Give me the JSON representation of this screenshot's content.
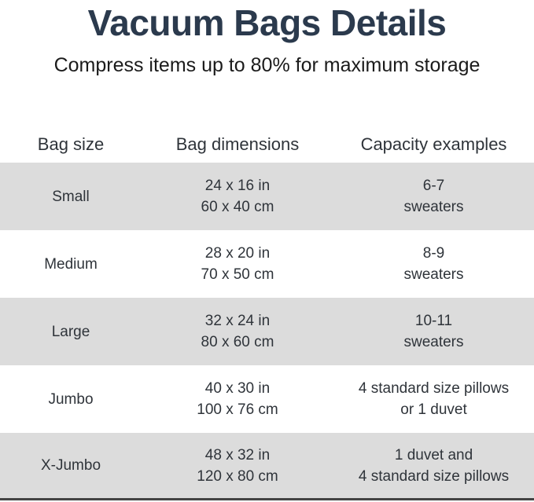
{
  "title": "Vacuum Bags Details",
  "subtitle": "Compress items up to 80% for maximum storage",
  "colors": {
    "title_text": "#2b3a4d",
    "body_text": "#2f343a",
    "row_alternate": "#dcdcdc",
    "bottom_rule": "#434343",
    "background": "#ffffff"
  },
  "table": {
    "headers": [
      "Bag size",
      "Bag dimensions",
      "Capacity examples"
    ],
    "rows": [
      {
        "size": "Small",
        "dims_in": "24 x 16 in",
        "dims_cm": "60 x 40 cm",
        "cap1": "6-7",
        "cap2": "sweaters"
      },
      {
        "size": "Medium",
        "dims_in": "28 x 20 in",
        "dims_cm": "70 x 50 cm",
        "cap1": "8-9",
        "cap2": "sweaters"
      },
      {
        "size": "Large",
        "dims_in": "32 x 24 in",
        "dims_cm": "80 x 60 cm",
        "cap1": "10-11",
        "cap2": "sweaters"
      },
      {
        "size": "Jumbo",
        "dims_in": "40 x 30 in",
        "dims_cm": "100 x 76 cm",
        "cap1": "4 standard size pillows",
        "cap2": "or 1 duvet"
      },
      {
        "size": "X-Jumbo",
        "dims_in": "48 x 32 in",
        "dims_cm": "120 x 80 cm",
        "cap1": "1 duvet and",
        "cap2": "4 standard size pillows"
      }
    ]
  }
}
